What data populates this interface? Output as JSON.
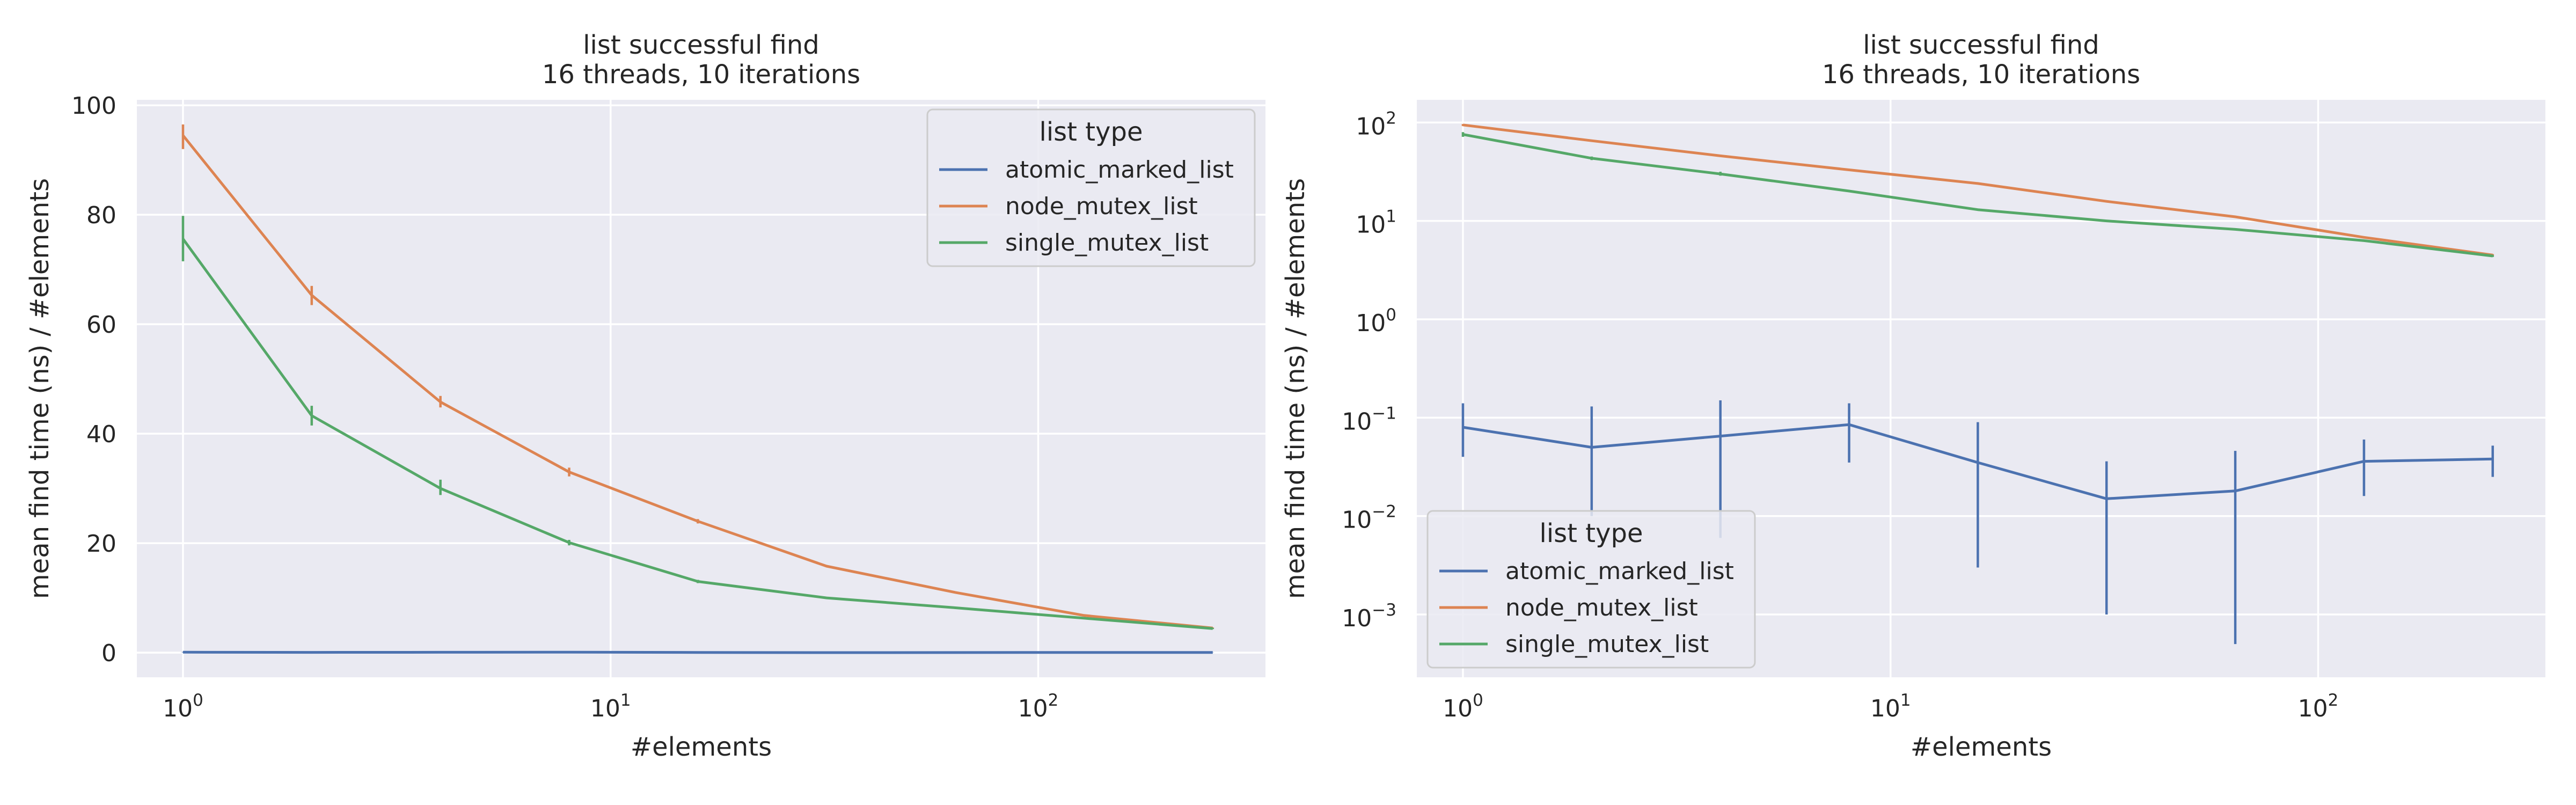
{
  "chart_data": [
    {
      "type": "line",
      "title": "list successful find",
      "subtitle": "16 threads, 10 iterations",
      "xlabel": "#elements",
      "ylabel": "mean find time (ns) / #elements",
      "xscale": "log",
      "yscale": "linear",
      "xlim": [
        0.78,
        340
      ],
      "ylim": [
        -4.5,
        101
      ],
      "xticks": [
        {
          "value": 1,
          "base": "10",
          "exp": "0"
        },
        {
          "value": 10,
          "base": "10",
          "exp": "1"
        },
        {
          "value": 100,
          "base": "10",
          "exp": "2"
        }
      ],
      "yticks": [
        {
          "value": 0,
          "label": "0"
        },
        {
          "value": 20,
          "label": "20"
        },
        {
          "value": 40,
          "label": "40"
        },
        {
          "value": 60,
          "label": "60"
        },
        {
          "value": 80,
          "label": "80"
        },
        {
          "value": 100,
          "label": "100"
        }
      ],
      "grid": true,
      "legend": {
        "title": "list type",
        "position": "top-right"
      },
      "x": [
        1,
        2,
        4,
        8,
        16,
        32,
        64,
        128,
        256
      ],
      "series": [
        {
          "name": "atomic_marked_list",
          "color": "#4c72b0",
          "values": [
            0.08,
            0.05,
            0.065,
            0.085,
            0.035,
            0.015,
            0.018,
            0.036,
            0.038
          ],
          "err_low": [
            0.04,
            0.01,
            0.006,
            0.035,
            0.003,
            0.001,
            0.0005,
            0.016,
            0.025
          ],
          "err_high": [
            0.14,
            0.13,
            0.15,
            0.14,
            0.09,
            0.036,
            0.046,
            0.06,
            0.052
          ]
        },
        {
          "name": "node_mutex_list",
          "color": "#dd8452",
          "values": [
            94.5,
            65.3,
            45.8,
            33.0,
            24.0,
            15.8,
            11.0,
            6.8,
            4.5
          ],
          "err_low": [
            92,
            63.5,
            44.8,
            32.2,
            23.6,
            15.6,
            10.9,
            6.7,
            4.4
          ],
          "err_high": [
            96.5,
            67,
            46.9,
            33.8,
            24.4,
            16.0,
            11.1,
            6.9,
            4.6
          ]
        },
        {
          "name": "single_mutex_list",
          "color": "#55a868",
          "values": [
            75.6,
            43.3,
            30.0,
            20.1,
            13.0,
            10.0,
            8.2,
            6.3,
            4.4
          ],
          "err_low": [
            71.5,
            41.5,
            28.8,
            19.6,
            12.7,
            9.9,
            8.1,
            6.2,
            4.3
          ],
          "err_high": [
            79.8,
            45.1,
            31.6,
            20.6,
            13.3,
            10.1,
            8.3,
            6.4,
            4.5
          ]
        }
      ]
    },
    {
      "type": "line",
      "title": "list successful find",
      "subtitle": "16 threads, 10 iterations",
      "xlabel": "#elements",
      "ylabel": "mean find time (ns) / #elements",
      "xscale": "log",
      "yscale": "log",
      "xlim": [
        0.78,
        340
      ],
      "ylim": [
        0.00023,
        170
      ],
      "xticks": [
        {
          "value": 1,
          "base": "10",
          "exp": "0"
        },
        {
          "value": 10,
          "base": "10",
          "exp": "1"
        },
        {
          "value": 100,
          "base": "10",
          "exp": "2"
        }
      ],
      "yticks": [
        {
          "value": 0.001,
          "base": "10",
          "exp": "−3"
        },
        {
          "value": 0.01,
          "base": "10",
          "exp": "−2"
        },
        {
          "value": 0.1,
          "base": "10",
          "exp": "−1"
        },
        {
          "value": 1,
          "base": "10",
          "exp": "0"
        },
        {
          "value": 10,
          "base": "10",
          "exp": "1"
        },
        {
          "value": 100,
          "base": "10",
          "exp": "2"
        }
      ],
      "grid": true,
      "legend": {
        "title": "list type",
        "position": "bottom-left"
      },
      "x": [
        1,
        2,
        4,
        8,
        16,
        32,
        64,
        128,
        256
      ],
      "series": [
        {
          "name": "atomic_marked_list",
          "color": "#4c72b0",
          "values": [
            0.08,
            0.05,
            0.065,
            0.085,
            0.035,
            0.015,
            0.018,
            0.036,
            0.038
          ],
          "err_low": [
            0.04,
            0.01,
            0.006,
            0.035,
            0.003,
            0.001,
            0.0005,
            0.016,
            0.025
          ],
          "err_high": [
            0.14,
            0.13,
            0.15,
            0.14,
            0.09,
            0.036,
            0.046,
            0.06,
            0.052
          ]
        },
        {
          "name": "node_mutex_list",
          "color": "#dd8452",
          "values": [
            94.5,
            65.3,
            45.8,
            33.0,
            24.0,
            15.8,
            11.0,
            6.8,
            4.5
          ],
          "err_low": [
            92,
            63.5,
            44.8,
            32.2,
            23.6,
            15.6,
            10.9,
            6.7,
            4.4
          ],
          "err_high": [
            96.5,
            67,
            46.9,
            33.8,
            24.4,
            16.0,
            11.1,
            6.9,
            4.6
          ]
        },
        {
          "name": "single_mutex_list",
          "color": "#55a868",
          "values": [
            75.6,
            43.3,
            30.0,
            20.1,
            13.0,
            10.0,
            8.2,
            6.3,
            4.4
          ],
          "err_low": [
            71.5,
            41.5,
            28.8,
            19.6,
            12.7,
            9.9,
            8.1,
            6.2,
            4.3
          ],
          "err_high": [
            79.8,
            45.1,
            31.6,
            20.6,
            13.3,
            10.1,
            8.3,
            6.4,
            4.5
          ]
        }
      ]
    }
  ]
}
